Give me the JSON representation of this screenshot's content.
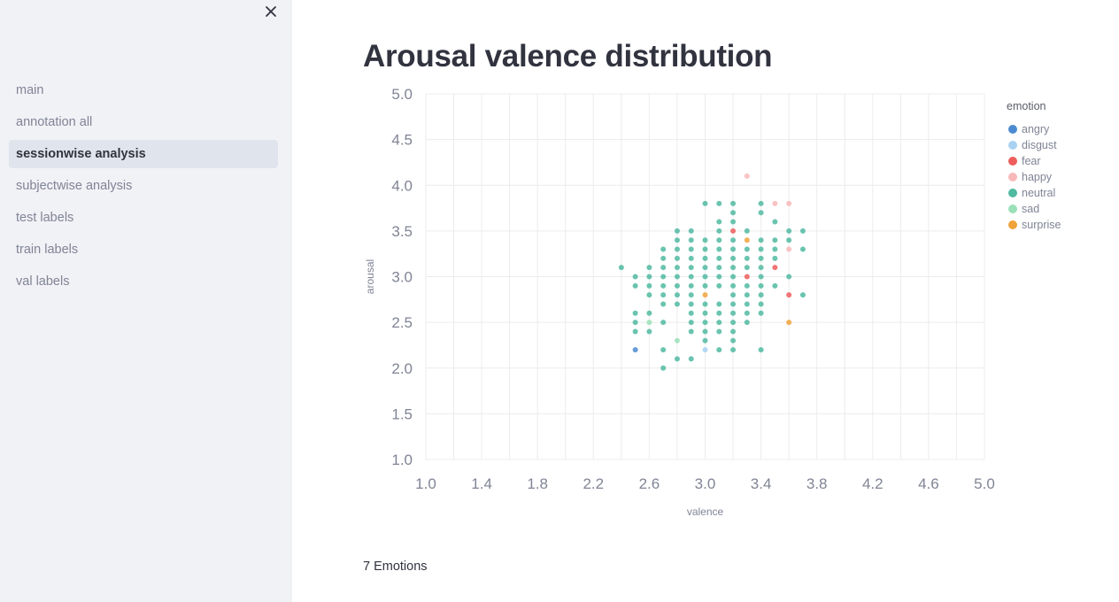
{
  "sidebar": {
    "close_icon": "close-icon",
    "items": [
      {
        "label": "main",
        "active": false
      },
      {
        "label": "annotation all",
        "active": false
      },
      {
        "label": "sessionwise analysis",
        "active": true
      },
      {
        "label": "subjectwise analysis",
        "active": false
      },
      {
        "label": "test labels",
        "active": false
      },
      {
        "label": "train labels",
        "active": false
      },
      {
        "label": "val labels",
        "active": false
      }
    ]
  },
  "main": {
    "title": "Arousal valence distribution",
    "footer_text": "7 Emotions"
  },
  "chart_data": {
    "type": "scatter",
    "title": "",
    "xlabel": "valence",
    "ylabel": "arousal",
    "xlim": [
      1.0,
      5.0
    ],
    "ylim": [
      1.0,
      5.0
    ],
    "x_ticks": [
      "1.0",
      "1.4",
      "1.8",
      "2.2",
      "2.6",
      "3.0",
      "3.4",
      "3.8",
      "4.2",
      "4.6",
      "5.0"
    ],
    "y_ticks": [
      "1.0",
      "1.5",
      "2.0",
      "2.5",
      "3.0",
      "3.5",
      "4.0",
      "4.5",
      "5.0"
    ],
    "grid": true,
    "legend_title": "emotion",
    "legend_position": "right",
    "series": [
      {
        "name": "angry",
        "color": "#4c8bd1",
        "points": [
          [
            2.5,
            2.2
          ]
        ]
      },
      {
        "name": "disgust",
        "color": "#a8d2f3",
        "points": [
          [
            3.0,
            2.2
          ]
        ]
      },
      {
        "name": "fear",
        "color": "#ef5d5d",
        "points": [
          [
            3.2,
            3.5
          ],
          [
            3.3,
            3.0
          ],
          [
            3.5,
            3.1
          ],
          [
            3.6,
            2.8
          ]
        ]
      },
      {
        "name": "happy",
        "color": "#f9b9b9",
        "points": [
          [
            3.3,
            4.1
          ],
          [
            3.5,
            3.8
          ],
          [
            3.6,
            3.8
          ],
          [
            3.6,
            3.3
          ]
        ]
      },
      {
        "name": "neutral",
        "color": "#50baa1",
        "points": [
          [
            2.4,
            3.1
          ],
          [
            2.5,
            3.0
          ],
          [
            2.5,
            2.9
          ],
          [
            2.5,
            2.6
          ],
          [
            2.5,
            2.5
          ],
          [
            2.5,
            2.4
          ],
          [
            2.6,
            3.1
          ],
          [
            2.6,
            3.0
          ],
          [
            2.6,
            2.9
          ],
          [
            2.6,
            2.8
          ],
          [
            2.6,
            2.6
          ],
          [
            2.6,
            2.4
          ],
          [
            2.7,
            3.3
          ],
          [
            2.7,
            3.2
          ],
          [
            2.7,
            3.1
          ],
          [
            2.7,
            3.0
          ],
          [
            2.7,
            2.9
          ],
          [
            2.7,
            2.8
          ],
          [
            2.7,
            2.7
          ],
          [
            2.7,
            2.5
          ],
          [
            2.7,
            2.2
          ],
          [
            2.7,
            2.0
          ],
          [
            2.8,
            3.5
          ],
          [
            2.8,
            3.4
          ],
          [
            2.8,
            3.3
          ],
          [
            2.8,
            3.2
          ],
          [
            2.8,
            3.1
          ],
          [
            2.8,
            3.0
          ],
          [
            2.8,
            2.9
          ],
          [
            2.8,
            2.8
          ],
          [
            2.8,
            2.7
          ],
          [
            2.8,
            2.1
          ],
          [
            2.9,
            3.5
          ],
          [
            2.9,
            3.4
          ],
          [
            2.9,
            3.3
          ],
          [
            2.9,
            3.2
          ],
          [
            2.9,
            3.1
          ],
          [
            2.9,
            3.0
          ],
          [
            2.9,
            2.9
          ],
          [
            2.9,
            2.8
          ],
          [
            2.9,
            2.7
          ],
          [
            2.9,
            2.6
          ],
          [
            2.9,
            2.5
          ],
          [
            2.9,
            2.4
          ],
          [
            2.9,
            2.1
          ],
          [
            3.0,
            3.8
          ],
          [
            3.0,
            3.4
          ],
          [
            3.0,
            3.3
          ],
          [
            3.0,
            3.2
          ],
          [
            3.0,
            3.1
          ],
          [
            3.0,
            3.0
          ],
          [
            3.0,
            2.9
          ],
          [
            3.0,
            2.7
          ],
          [
            3.0,
            2.6
          ],
          [
            3.0,
            2.5
          ],
          [
            3.0,
            2.4
          ],
          [
            3.0,
            2.3
          ],
          [
            3.1,
            3.8
          ],
          [
            3.1,
            3.6
          ],
          [
            3.1,
            3.5
          ],
          [
            3.1,
            3.4
          ],
          [
            3.1,
            3.3
          ],
          [
            3.1,
            3.2
          ],
          [
            3.1,
            3.1
          ],
          [
            3.1,
            3.0
          ],
          [
            3.1,
            2.9
          ],
          [
            3.1,
            2.7
          ],
          [
            3.1,
            2.6
          ],
          [
            3.1,
            2.5
          ],
          [
            3.1,
            2.4
          ],
          [
            3.1,
            2.2
          ],
          [
            3.2,
            3.8
          ],
          [
            3.2,
            3.7
          ],
          [
            3.2,
            3.6
          ],
          [
            3.2,
            3.4
          ],
          [
            3.2,
            3.3
          ],
          [
            3.2,
            3.2
          ],
          [
            3.2,
            3.1
          ],
          [
            3.2,
            3.0
          ],
          [
            3.2,
            2.9
          ],
          [
            3.2,
            2.8
          ],
          [
            3.2,
            2.7
          ],
          [
            3.2,
            2.6
          ],
          [
            3.2,
            2.5
          ],
          [
            3.2,
            2.4
          ],
          [
            3.2,
            2.3
          ],
          [
            3.2,
            2.2
          ],
          [
            3.3,
            3.5
          ],
          [
            3.3,
            3.3
          ],
          [
            3.3,
            3.2
          ],
          [
            3.3,
            3.1
          ],
          [
            3.3,
            2.9
          ],
          [
            3.3,
            2.8
          ],
          [
            3.3,
            2.7
          ],
          [
            3.3,
            2.6
          ],
          [
            3.3,
            2.5
          ],
          [
            3.4,
            3.8
          ],
          [
            3.4,
            3.7
          ],
          [
            3.4,
            3.4
          ],
          [
            3.4,
            3.3
          ],
          [
            3.4,
            3.2
          ],
          [
            3.4,
            3.1
          ],
          [
            3.4,
            3.0
          ],
          [
            3.4,
            2.9
          ],
          [
            3.4,
            2.8
          ],
          [
            3.4,
            2.7
          ],
          [
            3.4,
            2.6
          ],
          [
            3.4,
            2.2
          ],
          [
            3.5,
            3.6
          ],
          [
            3.5,
            3.4
          ],
          [
            3.5,
            3.3
          ],
          [
            3.5,
            3.2
          ],
          [
            3.5,
            2.9
          ],
          [
            3.6,
            3.5
          ],
          [
            3.6,
            3.4
          ],
          [
            3.6,
            3.0
          ],
          [
            3.7,
            3.5
          ],
          [
            3.7,
            3.3
          ],
          [
            3.7,
            2.8
          ]
        ]
      },
      {
        "name": "sad",
        "color": "#9be0b8",
        "points": [
          [
            2.6,
            2.5
          ],
          [
            2.8,
            2.3
          ]
        ]
      },
      {
        "name": "surprise",
        "color": "#f0a33a",
        "points": [
          [
            3.0,
            2.8
          ],
          [
            3.3,
            3.4
          ],
          [
            3.6,
            2.5
          ]
        ]
      }
    ]
  }
}
